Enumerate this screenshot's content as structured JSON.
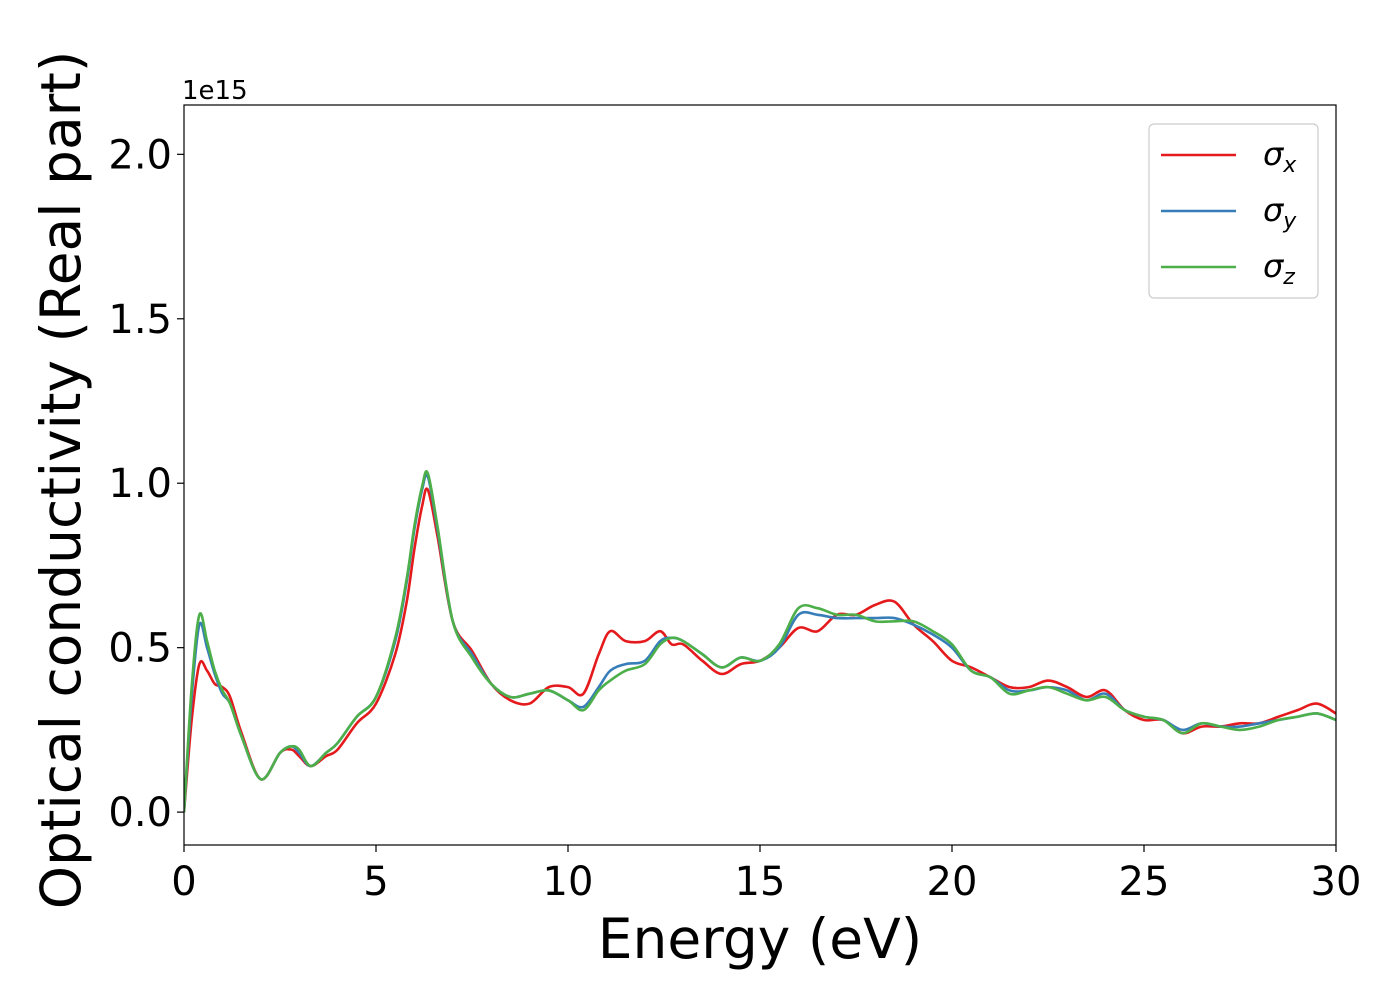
{
  "chart_data": {
    "type": "line",
    "title": "",
    "xlabel": "Energy (eV)",
    "ylabel": "Optical conductivity (Real part)",
    "y_offset_label": "1e15",
    "xlim": [
      0,
      30
    ],
    "ylim": [
      -0.1,
      2.15
    ],
    "xticks": [
      0,
      5,
      10,
      15,
      20,
      25,
      30
    ],
    "xtick_labels": [
      "0",
      "5",
      "10",
      "15",
      "20",
      "25",
      "30"
    ],
    "yticks": [
      0.0,
      0.5,
      1.0,
      1.5,
      2.0
    ],
    "ytick_labels": [
      "0.0",
      "0.5",
      "1.0",
      "1.5",
      "2.0"
    ],
    "grid": false,
    "legend_position": "top-right",
    "x": [
      0,
      0.2,
      0.4,
      0.6,
      0.8,
      1.0,
      1.2,
      1.5,
      2.0,
      2.5,
      2.8,
      3.0,
      3.3,
      3.7,
      4.0,
      4.5,
      5.0,
      5.5,
      5.8,
      6.0,
      6.2,
      6.35,
      6.6,
      7.0,
      7.5,
      8.0,
      8.5,
      9.0,
      9.5,
      10.0,
      10.4,
      10.8,
      11.1,
      11.5,
      12.0,
      12.4,
      12.7,
      13.0,
      13.5,
      14.0,
      14.5,
      15.0,
      15.5,
      16.0,
      16.5,
      17.0,
      17.5,
      18.0,
      18.5,
      19.0,
      19.5,
      20.0,
      20.5,
      21.0,
      21.5,
      22.0,
      22.5,
      23.0,
      23.5,
      24.0,
      24.5,
      25.0,
      25.5,
      26.0,
      26.5,
      27.0,
      27.5,
      28.0,
      28.5,
      29.0,
      29.5,
      30.0
    ],
    "series": [
      {
        "name": "σ",
        "subscript": "x",
        "color": "#e41a1c",
        "values": [
          0.0,
          0.28,
          0.45,
          0.43,
          0.39,
          0.38,
          0.35,
          0.24,
          0.1,
          0.18,
          0.19,
          0.17,
          0.14,
          0.17,
          0.19,
          0.27,
          0.33,
          0.48,
          0.64,
          0.8,
          0.93,
          0.98,
          0.84,
          0.58,
          0.49,
          0.39,
          0.34,
          0.33,
          0.38,
          0.38,
          0.36,
          0.48,
          0.55,
          0.52,
          0.52,
          0.55,
          0.51,
          0.51,
          0.46,
          0.42,
          0.45,
          0.46,
          0.5,
          0.56,
          0.55,
          0.6,
          0.6,
          0.63,
          0.64,
          0.57,
          0.52,
          0.46,
          0.44,
          0.41,
          0.38,
          0.38,
          0.4,
          0.38,
          0.35,
          0.37,
          0.31,
          0.28,
          0.28,
          0.24,
          0.26,
          0.26,
          0.27,
          0.27,
          0.29,
          0.31,
          0.33,
          0.3
        ]
      },
      {
        "name": "σ",
        "subscript": "y",
        "color": "#377eb8",
        "values": [
          0.0,
          0.35,
          0.57,
          0.5,
          0.42,
          0.36,
          0.33,
          0.23,
          0.1,
          0.18,
          0.2,
          0.18,
          0.14,
          0.18,
          0.21,
          0.29,
          0.35,
          0.52,
          0.7,
          0.86,
          0.98,
          1.02,
          0.86,
          0.58,
          0.48,
          0.39,
          0.35,
          0.36,
          0.37,
          0.34,
          0.32,
          0.38,
          0.43,
          0.45,
          0.46,
          0.52,
          0.53,
          0.52,
          0.48,
          0.44,
          0.47,
          0.46,
          0.5,
          0.6,
          0.6,
          0.59,
          0.59,
          0.59,
          0.59,
          0.57,
          0.54,
          0.5,
          0.43,
          0.41,
          0.37,
          0.37,
          0.38,
          0.37,
          0.34,
          0.36,
          0.31,
          0.29,
          0.28,
          0.25,
          0.27,
          0.26,
          0.26,
          0.27,
          0.28,
          0.29,
          0.3,
          0.28
        ]
      },
      {
        "name": "σ",
        "subscript": "z",
        "color": "#4daf4a",
        "values": [
          0.0,
          0.38,
          0.6,
          0.52,
          0.43,
          0.37,
          0.33,
          0.23,
          0.1,
          0.18,
          0.2,
          0.19,
          0.14,
          0.18,
          0.21,
          0.29,
          0.35,
          0.53,
          0.71,
          0.87,
          0.99,
          1.03,
          0.87,
          0.58,
          0.47,
          0.39,
          0.35,
          0.36,
          0.37,
          0.34,
          0.31,
          0.37,
          0.4,
          0.43,
          0.45,
          0.51,
          0.53,
          0.52,
          0.48,
          0.44,
          0.47,
          0.46,
          0.51,
          0.62,
          0.62,
          0.6,
          0.6,
          0.58,
          0.58,
          0.58,
          0.55,
          0.51,
          0.43,
          0.41,
          0.36,
          0.37,
          0.38,
          0.36,
          0.34,
          0.35,
          0.31,
          0.29,
          0.28,
          0.24,
          0.27,
          0.26,
          0.25,
          0.26,
          0.28,
          0.29,
          0.3,
          0.28
        ]
      }
    ]
  }
}
